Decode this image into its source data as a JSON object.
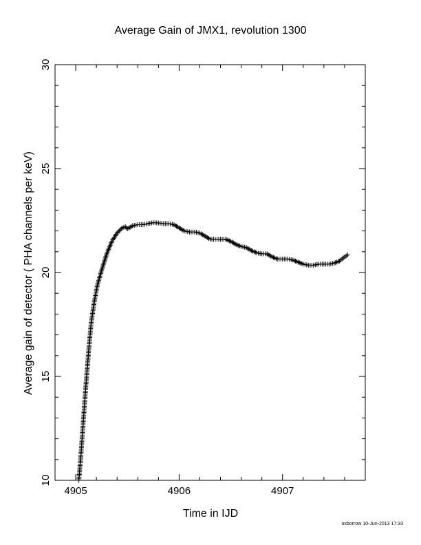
{
  "chart_data": {
    "type": "scatter",
    "title": "Average Gain of JMX1, revolution 1300",
    "xlabel": "Time in IJD",
    "ylabel": "Average gain of detector ( PHA channels per keV)",
    "xlim": [
      4904.8,
      4907.8
    ],
    "ylim": [
      10,
      30
    ],
    "xticks": [
      4905,
      4906,
      4907
    ],
    "yticks": [
      10,
      15,
      20,
      25,
      30
    ],
    "xtick_labels": [
      "4905",
      "4906",
      "4907"
    ],
    "ytick_labels": [
      "10",
      "15",
      "20",
      "25",
      "30"
    ],
    "marker": "plus",
    "grid": false,
    "series": [
      {
        "x": [
          4905.03,
          4905.05,
          4905.07,
          4905.09,
          4905.11,
          4905.13,
          4905.15,
          4905.18,
          4905.21,
          4905.25,
          4905.3,
          4905.35,
          4905.4,
          4905.45,
          4905.48,
          4905.5,
          4905.55,
          4905.6,
          4905.65,
          4905.7,
          4905.75,
          4905.8,
          4905.85,
          4905.9,
          4905.95,
          4906.0,
          4906.05,
          4906.1,
          4906.15,
          4906.2,
          4906.25,
          4906.3,
          4906.35,
          4906.4,
          4906.45,
          4906.5,
          4906.55,
          4906.6,
          4906.65,
          4906.7,
          4906.75,
          4906.8,
          4906.85,
          4906.9,
          4906.95,
          4907.0,
          4907.05,
          4907.1,
          4907.15,
          4907.2,
          4907.25,
          4907.3,
          4907.35,
          4907.4,
          4907.45,
          4907.5,
          4907.55,
          4907.6,
          4907.63
        ],
        "y": [
          10.0,
          11.2,
          12.6,
          14.0,
          15.3,
          16.5,
          17.6,
          18.6,
          19.4,
          20.1,
          20.9,
          21.5,
          21.9,
          22.15,
          22.2,
          22.1,
          22.25,
          22.3,
          22.3,
          22.35,
          22.4,
          22.38,
          22.35,
          22.35,
          22.3,
          22.15,
          22.0,
          21.95,
          21.95,
          21.9,
          21.75,
          21.6,
          21.6,
          21.6,
          21.6,
          21.5,
          21.35,
          21.25,
          21.2,
          21.05,
          20.95,
          20.9,
          20.9,
          20.75,
          20.65,
          20.65,
          20.65,
          20.6,
          20.5,
          20.4,
          20.35,
          20.35,
          20.4,
          20.4,
          20.4,
          20.45,
          20.55,
          20.75,
          20.85
        ]
      }
    ]
  },
  "footer": "oxborrow 10-Jun-2013 17:33",
  "colors": {
    "axis": "#000000",
    "marker": "#000000",
    "background": "#ffffff"
  }
}
